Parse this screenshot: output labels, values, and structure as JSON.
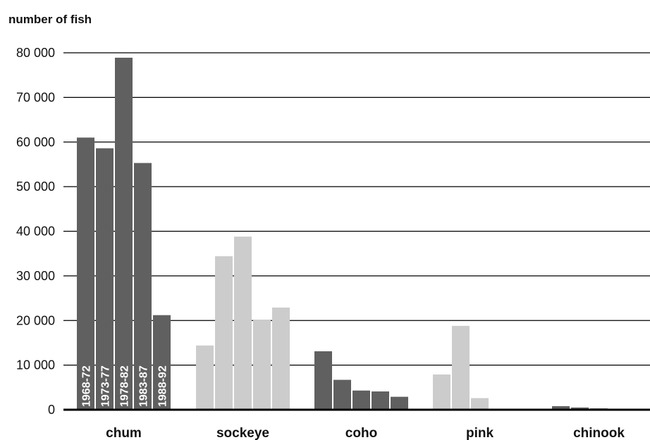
{
  "chart_data": {
    "type": "bar",
    "ylabel": "number of fish",
    "xlabel": "",
    "ylim": [
      0,
      80000
    ],
    "yticks": [
      0,
      10000,
      20000,
      30000,
      40000,
      50000,
      60000,
      70000,
      80000
    ],
    "ytick_labels": [
      "0",
      "10 000",
      "20 000",
      "30 000",
      "40 000",
      "50 000",
      "60 000",
      "70 000",
      "80 000"
    ],
    "categories": [
      "chum",
      "sockeye",
      "coho",
      "pink",
      "chinook"
    ],
    "series": [
      {
        "name": "1968-72",
        "values": [
          61000,
          14400,
          13100,
          7900,
          800
        ]
      },
      {
        "name": "1973-77",
        "values": [
          58600,
          34400,
          6700,
          18800,
          500
        ]
      },
      {
        "name": "1978-82",
        "values": [
          78900,
          38800,
          4300,
          2600,
          300
        ]
      },
      {
        "name": "1983-87",
        "values": [
          55300,
          20200,
          4100,
          0,
          100
        ]
      },
      {
        "name": "1988-92",
        "values": [
          21200,
          22900,
          2900,
          0,
          50
        ]
      }
    ],
    "category_colors": [
      "#606060",
      "#cccccc",
      "#606060",
      "#cccccc",
      "#606060"
    ],
    "period_labels_in_first_group": true,
    "grid": true
  }
}
